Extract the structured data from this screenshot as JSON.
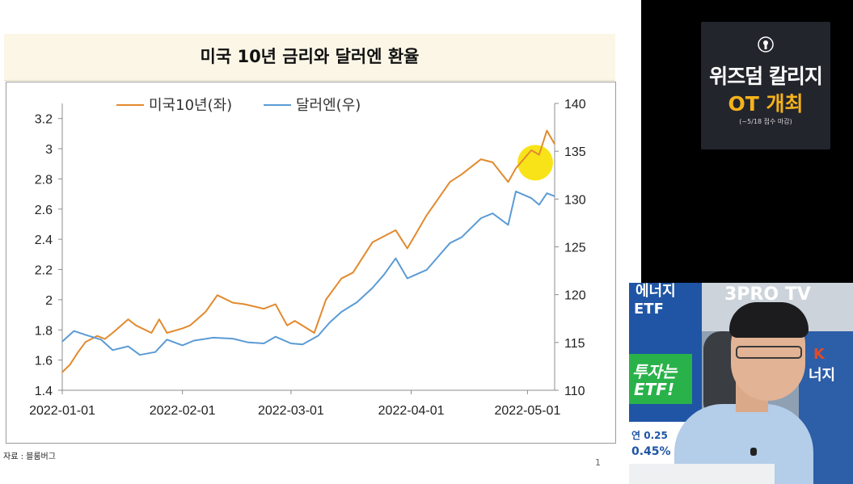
{
  "slide": {
    "title": "미국 10년 금리와 달러엔 환율",
    "source": "자료 : 블룸버그",
    "page_number": "1"
  },
  "promo": {
    "line1": "위즈덤 칼리지",
    "line2": "OT 개최",
    "line3": "(~5/18 접수 마감)",
    "accent": "#f5b21a"
  },
  "webcam": {
    "channel_sign": "3PRO TV",
    "banner_line1": "에너지",
    "banner_line2": "ETF",
    "banner_line3": "투자는",
    "banner_line4": "ETF!",
    "banner_rate": "연 0.25",
    "banner_pct": "0.45%",
    "right_sign_a": "K",
    "right_sign_b": "너지"
  },
  "chart_data": {
    "type": "line",
    "title": "미국 10년 금리와 달러엔 환율",
    "x_type": "date",
    "x_ticks": [
      "2022-01-01",
      "2022-02-01",
      "2022-03-01",
      "2022-04-01",
      "2022-05-01"
    ],
    "xlim": [
      "2022-01-01",
      "2022-05-08"
    ],
    "y_left": {
      "ticks": [
        "1.4",
        "1.6",
        "1.8",
        "2",
        "2.2",
        "2.4",
        "2.6",
        "2.8",
        "3",
        "3.2"
      ],
      "lim": [
        1.4,
        3.3
      ]
    },
    "y_right": {
      "ticks": [
        "110",
        "115",
        "120",
        "125",
        "130",
        "135",
        "140"
      ],
      "lim": [
        110,
        140
      ]
    },
    "legend": "top-center",
    "grid": false,
    "highlight": {
      "date": "2022-05-03",
      "value": 133.8,
      "axis": "right",
      "color": "#f7e000"
    },
    "series": [
      {
        "name": "미국10년(좌)",
        "axis": "left",
        "color": "#e28a2e",
        "segments": [
          [
            [
              "2022-01-01",
              1.52
            ],
            [
              "2022-01-03",
              1.57
            ],
            [
              "2022-01-05",
              1.65
            ],
            [
              "2022-01-07",
              1.72
            ],
            [
              "2022-01-10",
              1.76
            ],
            [
              "2022-01-12",
              1.74
            ],
            [
              "2022-01-14",
              1.78
            ],
            [
              "2022-01-18",
              1.87
            ],
            [
              "2022-01-20",
              1.83
            ],
            [
              "2022-01-24",
              1.78
            ],
            [
              "2022-01-26",
              1.87
            ],
            [
              "2022-01-28",
              1.78
            ],
            [
              "2022-02-01",
              1.81
            ],
            [
              "2022-02-03",
              1.83
            ],
            [
              "2022-02-07",
              1.92
            ],
            [
              "2022-02-10",
              2.03
            ],
            [
              "2022-02-14",
              1.98
            ],
            [
              "2022-02-17",
              1.97
            ],
            [
              "2022-02-22",
              1.94
            ],
            [
              "2022-02-25",
              1.97
            ],
            [
              "2022-02-28",
              1.83
            ],
            [
              "2022-03-02",
              1.86
            ],
            [
              "2022-03-07",
              1.78
            ],
            [
              "2022-03-10",
              2.0
            ],
            [
              "2022-03-14",
              2.14
            ],
            [
              "2022-03-17",
              2.18
            ],
            [
              "2022-03-22",
              2.38
            ],
            [
              "2022-03-28",
              2.46
            ],
            [
              "2022-03-31",
              2.34
            ],
            [
              "2022-04-05",
              2.56
            ],
            [
              "2022-04-11",
              2.78
            ],
            [
              "2022-04-14",
              2.83
            ],
            [
              "2022-04-19",
              2.93
            ],
            [
              "2022-04-22",
              2.91
            ],
            [
              "2022-04-26",
              2.78
            ],
            [
              "2022-04-28",
              2.87
            ],
            [
              "2022-05-02",
              2.99
            ],
            [
              "2022-05-04",
              2.96
            ],
            [
              "2022-05-06",
              3.12
            ],
            [
              "2022-05-08",
              3.03
            ]
          ]
        ]
      },
      {
        "name": "달러엔(우)",
        "axis": "right",
        "color": "#5b9bd5",
        "segments": [
          [
            [
              "2022-01-01",
              115.1
            ],
            [
              "2022-01-04",
              116.2
            ],
            [
              "2022-01-07",
              115.8
            ],
            [
              "2022-01-11",
              115.3
            ],
            [
              "2022-01-14",
              114.2
            ],
            [
              "2022-01-18",
              114.6
            ],
            [
              "2022-01-21",
              113.7
            ],
            [
              "2022-01-25",
              114.0
            ],
            [
              "2022-01-28",
              115.3
            ],
            [
              "2022-02-01",
              114.7
            ],
            [
              "2022-02-04",
              115.2
            ],
            [
              "2022-02-09",
              115.5
            ],
            [
              "2022-02-14",
              115.4
            ],
            [
              "2022-02-18",
              115.0
            ],
            [
              "2022-02-22",
              114.9
            ],
            [
              "2022-02-25",
              115.6
            ],
            [
              "2022-03-01",
              114.9
            ],
            [
              "2022-03-04",
              114.8
            ],
            [
              "2022-03-08",
              115.7
            ],
            [
              "2022-03-11",
              117.1
            ],
            [
              "2022-03-14",
              118.2
            ],
            [
              "2022-03-18",
              119.2
            ],
            [
              "2022-03-22",
              120.7
            ],
            [
              "2022-03-25",
              122.1
            ],
            [
              "2022-03-28",
              123.8
            ],
            [
              "2022-03-31",
              121.7
            ],
            [
              "2022-04-05",
              122.6
            ],
            [
              "2022-04-11",
              125.4
            ],
            [
              "2022-04-14",
              126.0
            ],
            [
              "2022-04-19",
              128.0
            ],
            [
              "2022-04-22",
              128.5
            ],
            [
              "2022-04-26",
              127.3
            ],
            [
              "2022-04-28",
              130.8
            ],
            [
              "2022-05-02",
              130.1
            ],
            [
              "2022-05-04",
              129.4
            ],
            [
              "2022-05-06",
              130.6
            ],
            [
              "2022-05-08",
              130.3
            ]
          ]
        ]
      }
    ]
  }
}
